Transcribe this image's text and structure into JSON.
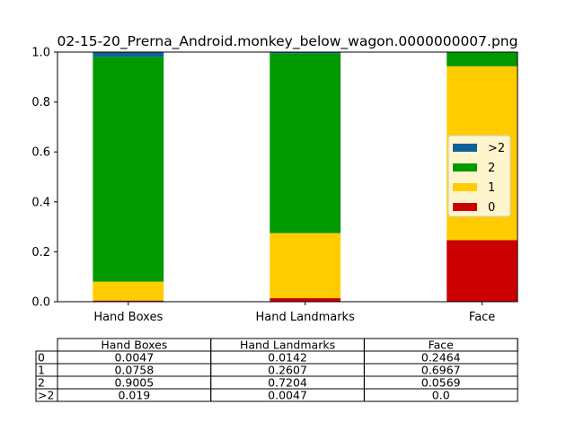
{
  "chart_data": {
    "type": "bar",
    "stacked": true,
    "title": "02-15-20_Prerna_Android.monkey_below_wagon.0000000007.png",
    "categories": [
      "Hand Boxes",
      "Hand Landmarks",
      "Face"
    ],
    "series": [
      {
        "name": "0",
        "color": "#cc0000",
        "values": [
          0.0047,
          0.0142,
          0.2464
        ]
      },
      {
        "name": "1",
        "color": "#ffcc00",
        "values": [
          0.0758,
          0.2607,
          0.6967
        ]
      },
      {
        "name": "2",
        "color": "#009900",
        "values": [
          0.9005,
          0.7204,
          0.0569
        ]
      },
      {
        "name": ">2",
        "color": "#0f6199",
        "values": [
          0.019,
          0.0047,
          0.0
        ]
      }
    ],
    "ylim": [
      0,
      1.0
    ],
    "yticks": [
      "0.0",
      "0.2",
      "0.4",
      "0.6",
      "0.8",
      "1.0"
    ],
    "xlabel": "",
    "ylabel": "",
    "legend": {
      "placement": "center-right",
      "order": [
        ">2",
        "2",
        "1",
        "0"
      ]
    },
    "table": {
      "col_labels": [
        "Hand Boxes",
        "Hand Landmarks",
        "Face"
      ],
      "row_labels": [
        "0",
        "1",
        "2",
        ">2"
      ],
      "cells": [
        [
          "0.0047",
          "0.0142",
          "0.2464"
        ],
        [
          "0.0758",
          "0.2607",
          "0.6967"
        ],
        [
          "0.9005",
          "0.7204",
          "0.0569"
        ],
        [
          "0.019",
          "0.0047",
          "0.0"
        ]
      ]
    }
  }
}
